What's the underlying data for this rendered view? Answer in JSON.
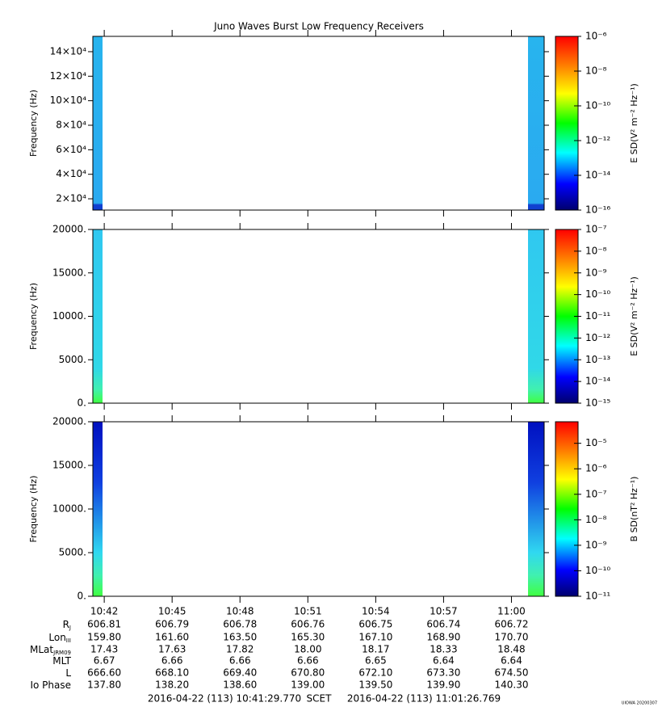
{
  "title": "Juno Waves Burst Low Frequency Receivers",
  "chart_data": [
    {
      "type": "spectrogram",
      "ylabel": "Frequency (Hz)",
      "ylim": [
        10800,
        152500
      ],
      "yticks": [
        {
          "value": 20000,
          "label": "2×10⁴"
        },
        {
          "value": 40000,
          "label": "4×10⁴"
        },
        {
          "value": 60000,
          "label": "6×10⁴"
        },
        {
          "value": 80000,
          "label": "8×10⁴"
        },
        {
          "value": 100000,
          "label": "10×10⁴"
        },
        {
          "value": 120000,
          "label": "12×10⁴"
        },
        {
          "value": 140000,
          "label": "14×10⁴"
        }
      ],
      "xlim": [
        38489.77,
        39686.769
      ],
      "xticks": [
        {
          "value": 38520,
          "label": "10:42"
        },
        {
          "value": 38700,
          "label": "10:45"
        },
        {
          "value": 38880,
          "label": "10:48"
        },
        {
          "value": 39060,
          "label": "10:51"
        },
        {
          "value": 39240,
          "label": "10:54"
        },
        {
          "value": 39420,
          "label": "10:57"
        },
        {
          "value": 39600,
          "label": "11:00"
        }
      ],
      "colorbar": {
        "label": "E SD(V² m⁻² Hz⁻¹)",
        "log": true,
        "lim": [
          1e-16,
          1e-06
        ],
        "ticks": [
          {
            "value": 1e-06,
            "label": "10⁻⁶"
          },
          {
            "value": 1e-08,
            "label": "10⁻⁸"
          },
          {
            "value": 1e-10,
            "label": "10⁻¹⁰"
          },
          {
            "value": 1e-12,
            "label": "10⁻¹²"
          },
          {
            "value": 1e-14,
            "label": "10⁻¹⁴"
          },
          {
            "value": 1e-16,
            "label": "10⁻¹⁶"
          }
        ]
      }
    },
    {
      "type": "spectrogram",
      "ylabel": "Frequency (Hz)",
      "ylim": [
        0,
        20000
      ],
      "yticks": [
        {
          "value": 0,
          "label": "0."
        },
        {
          "value": 5000,
          "label": "5000."
        },
        {
          "value": 10000,
          "label": "10000."
        },
        {
          "value": 15000,
          "label": "15000."
        },
        {
          "value": 20000,
          "label": "20000."
        }
      ],
      "xlim": [
        38489.77,
        39686.769
      ],
      "xticks": [
        {
          "value": 38520,
          "label": "10:42"
        },
        {
          "value": 38700,
          "label": "10:45"
        },
        {
          "value": 38880,
          "label": "10:48"
        },
        {
          "value": 39060,
          "label": "10:51"
        },
        {
          "value": 39240,
          "label": "10:54"
        },
        {
          "value": 39420,
          "label": "10:57"
        },
        {
          "value": 39600,
          "label": "11:00"
        }
      ],
      "colorbar": {
        "label": "E SD(V² m⁻² Hz⁻¹)",
        "log": true,
        "lim": [
          1e-15,
          1e-07
        ],
        "ticks": [
          {
            "value": 1e-07,
            "label": "10⁻⁷"
          },
          {
            "value": 1e-08,
            "label": "10⁻⁸"
          },
          {
            "value": 1e-09,
            "label": "10⁻⁹"
          },
          {
            "value": 1e-10,
            "label": "10⁻¹⁰"
          },
          {
            "value": 1e-11,
            "label": "10⁻¹¹"
          },
          {
            "value": 1e-12,
            "label": "10⁻¹²"
          },
          {
            "value": 1e-13,
            "label": "10⁻¹³"
          },
          {
            "value": 1e-14,
            "label": "10⁻¹⁴"
          },
          {
            "value": 1e-15,
            "label": "10⁻¹⁵"
          }
        ]
      }
    },
    {
      "type": "spectrogram",
      "ylabel": "Frequency (Hz)",
      "ylim": [
        0,
        20000
      ],
      "yticks": [
        {
          "value": 0,
          "label": "0."
        },
        {
          "value": 5000,
          "label": "5000."
        },
        {
          "value": 10000,
          "label": "10000."
        },
        {
          "value": 15000,
          "label": "15000."
        },
        {
          "value": 20000,
          "label": "20000."
        }
      ],
      "xlim": [
        38489.77,
        39686.769
      ],
      "xticks": [
        {
          "value": 38520,
          "label": "10:42"
        },
        {
          "value": 38700,
          "label": "10:45"
        },
        {
          "value": 38880,
          "label": "10:48"
        },
        {
          "value": 39060,
          "label": "10:51"
        },
        {
          "value": 39240,
          "label": "10:54"
        },
        {
          "value": 39420,
          "label": "10:57"
        },
        {
          "value": 39600,
          "label": "11:00"
        }
      ],
      "colorbar": {
        "label": "B SD(nT² Hz⁻¹)",
        "log": true,
        "lim": [
          1e-11,
          7e-05
        ],
        "ticks": [
          {
            "value": 1e-05,
            "label": "10⁻⁵"
          },
          {
            "value": 1e-06,
            "label": "10⁻⁶"
          },
          {
            "value": 1e-07,
            "label": "10⁻⁷"
          },
          {
            "value": 1e-08,
            "label": "10⁻⁸"
          },
          {
            "value": 1e-09,
            "label": "10⁻⁹"
          },
          {
            "value": 1e-10,
            "label": "10⁻¹⁰"
          },
          {
            "value": 1e-11,
            "label": "10⁻¹¹"
          }
        ]
      }
    }
  ],
  "ephemeris": [
    {
      "label": "R",
      "sub": "J",
      "values": [
        "606.81",
        "606.79",
        "606.78",
        "606.76",
        "606.75",
        "606.74",
        "606.72"
      ]
    },
    {
      "label": "Lon",
      "sub": "III",
      "values": [
        "159.80",
        "161.60",
        "163.50",
        "165.30",
        "167.10",
        "168.90",
        "170.70"
      ]
    },
    {
      "label": "MLat",
      "sub": "JRM09",
      "values": [
        "17.43",
        "17.63",
        "17.82",
        "18.00",
        "18.17",
        "18.33",
        "18.48"
      ]
    },
    {
      "label": "MLT",
      "values": [
        "6.67",
        "6.66",
        "6.66",
        "6.66",
        "6.65",
        "6.64",
        "6.64"
      ]
    },
    {
      "label": "L",
      "values": [
        "666.60",
        "668.10",
        "669.40",
        "670.80",
        "672.10",
        "673.30",
        "674.50"
      ]
    },
    {
      "label": "Io Phase",
      "values": [
        "137.80",
        "138.20",
        "138.60",
        "139.00",
        "139.50",
        "139.90",
        "140.30"
      ]
    }
  ],
  "footer": {
    "start": "2016-04-22 (113) 10:41:29.770",
    "scet": "SCET",
    "end": "2016-04-22 (113) 11:01:26.769",
    "stamp": "UIOWA 20200307"
  }
}
